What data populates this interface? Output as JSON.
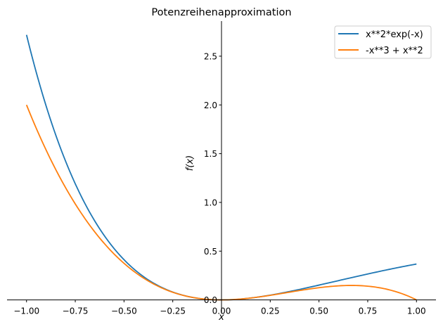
{
  "chart_data": {
    "type": "line",
    "title": "Potenzreihenapproximation",
    "xlabel": "x",
    "ylabel": "f(x)",
    "xlim": [
      -1.1,
      1.1
    ],
    "ylim": [
      -0.14,
      2.86
    ],
    "xticks": [
      -1.0,
      -0.75,
      -0.5,
      -0.25,
      0.0,
      0.25,
      0.5,
      0.75,
      1.0
    ],
    "xtick_labels": [
      "−1.00",
      "−0.75",
      "−0.50",
      "−0.25",
      "0.00",
      "0.25",
      "0.50",
      "0.75",
      "1.00"
    ],
    "yticks": [
      0.0,
      0.5,
      1.0,
      1.5,
      2.0,
      2.5
    ],
    "ytick_labels": [
      "0.0",
      "0.5",
      "1.0",
      "1.5",
      "2.0",
      "2.5"
    ],
    "legend_position": "top-right",
    "grid": false,
    "series": [
      {
        "name": "x**2*exp(-x)",
        "color": "#1f77b4",
        "expr": "x^2*exp(-x)",
        "x_range": [
          -1,
          1
        ],
        "x": [
          -1,
          -0.75,
          -0.5,
          -0.25,
          0,
          0.25,
          0.5,
          0.75,
          1
        ],
        "y": [
          2.718,
          1.191,
          0.412,
          0.08,
          0,
          0.049,
          0.152,
          0.266,
          0.368
        ]
      },
      {
        "name": "-x**3 + x**2",
        "color": "#ff7f0e",
        "expr": "-x^3+x^2",
        "x_range": [
          -1,
          1
        ],
        "x": [
          -1,
          -0.75,
          -0.5,
          -0.25,
          0,
          0.25,
          0.5,
          0.75,
          1
        ],
        "y": [
          2.0,
          0.984,
          0.375,
          0.078,
          0,
          0.047,
          0.125,
          0.141,
          0.0
        ]
      }
    ]
  }
}
